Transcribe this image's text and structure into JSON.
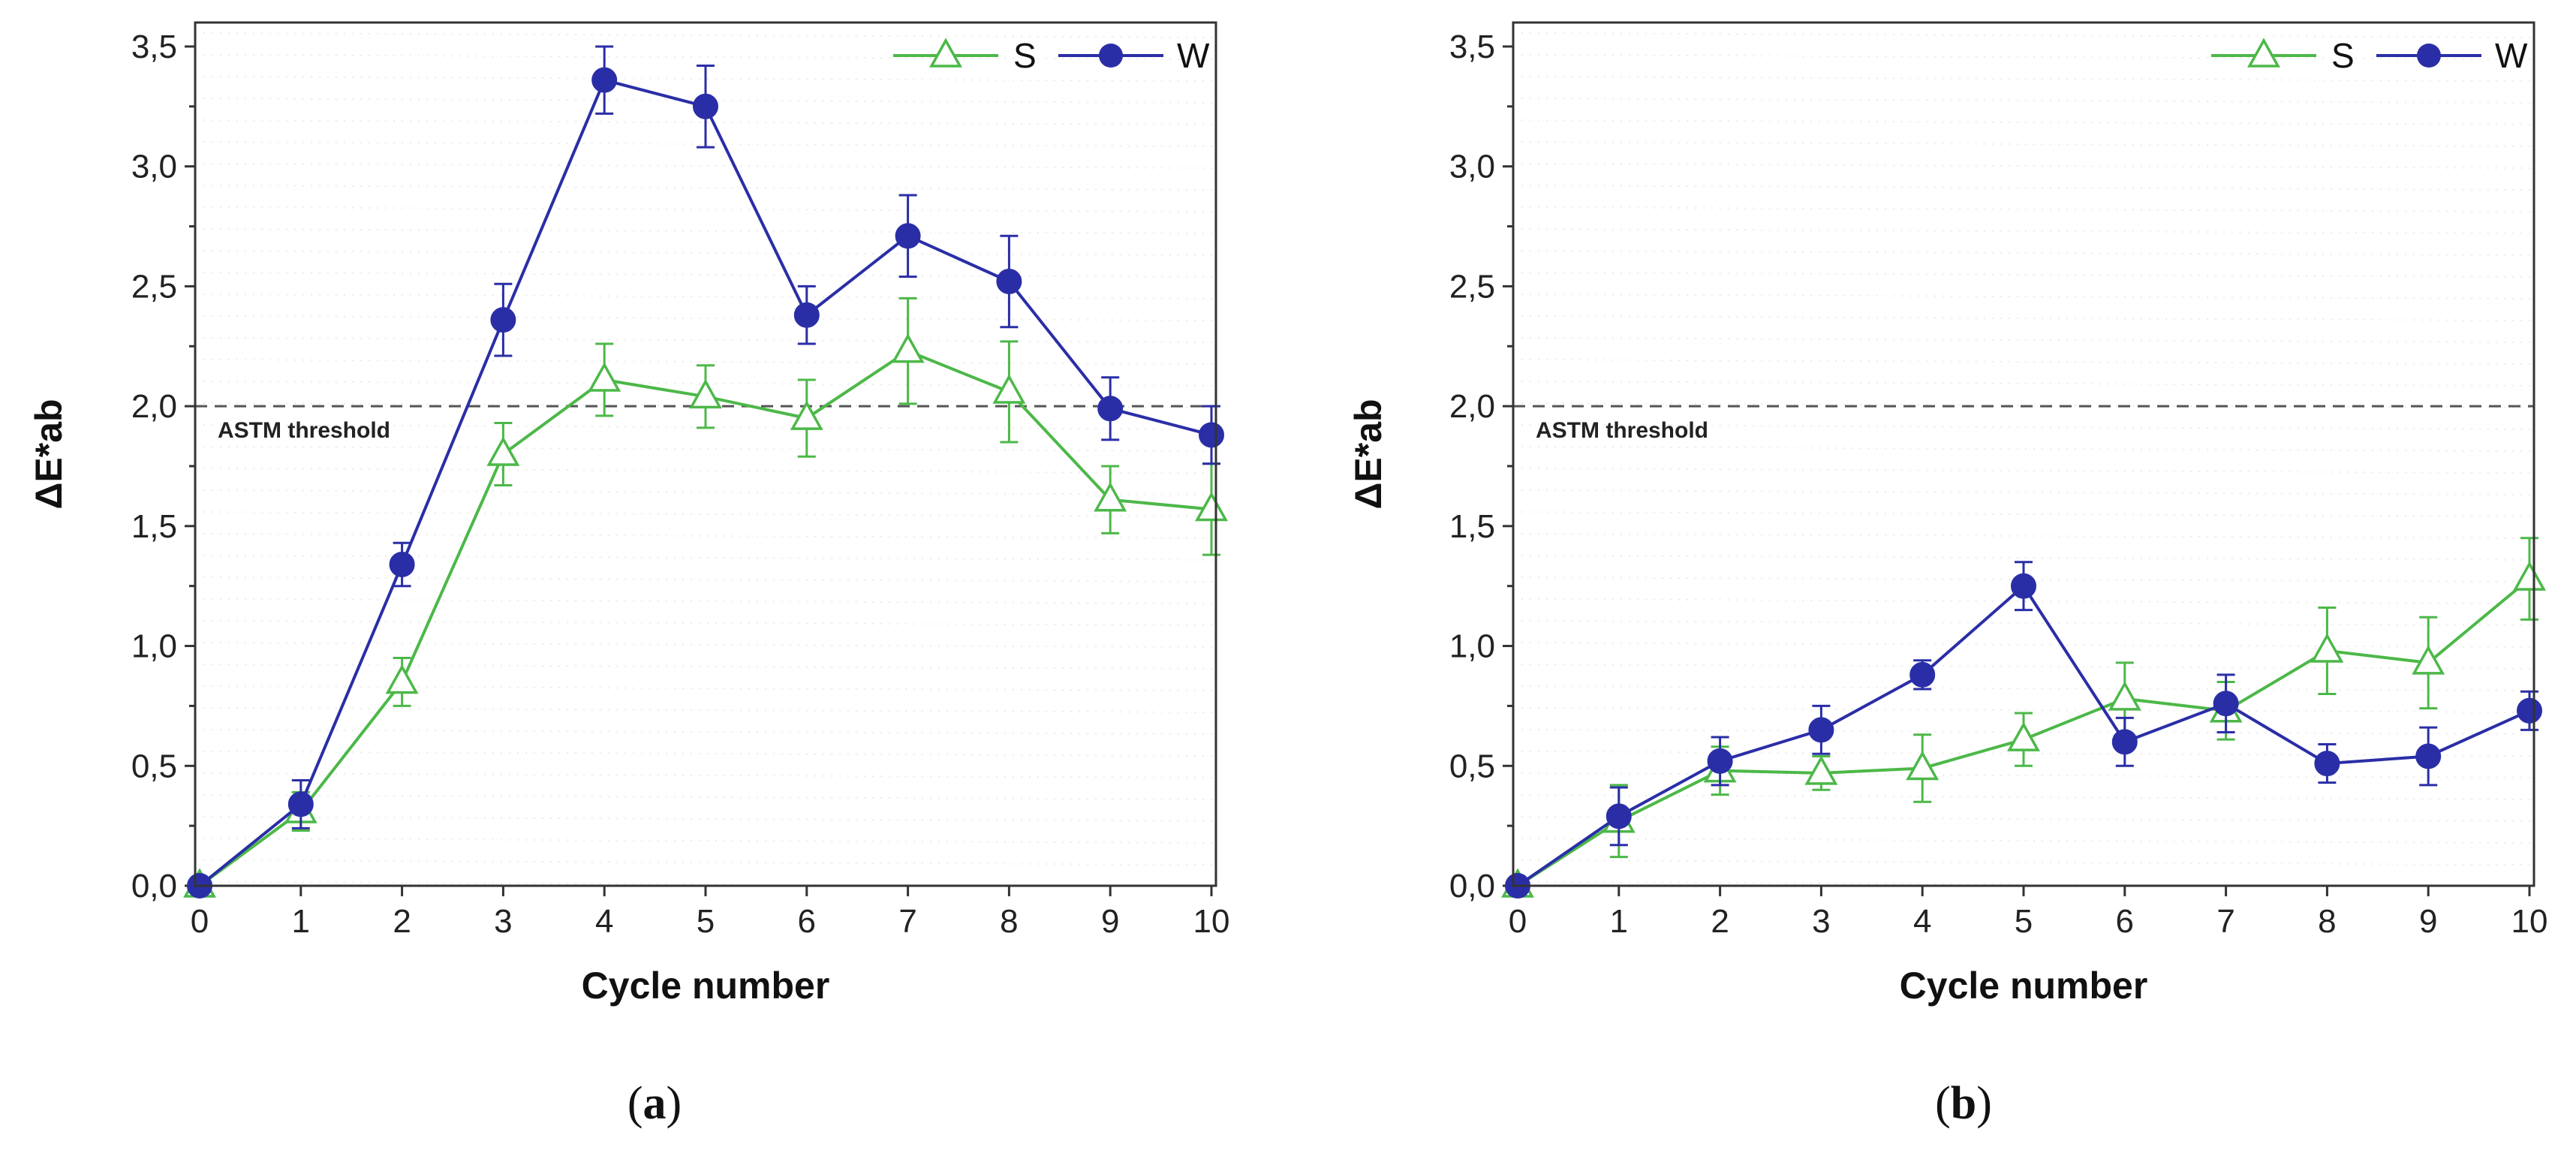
{
  "chart_data": [
    {
      "type": "line",
      "panel_label": "a",
      "xlabel": "Cycle number",
      "ylabel": "ΔE*ab",
      "x": [
        0,
        1,
        2,
        3,
        4,
        5,
        6,
        7,
        8,
        9,
        10
      ],
      "xticks": [
        "0",
        "1",
        "2",
        "3",
        "4",
        "5",
        "6",
        "7",
        "8",
        "9",
        "10"
      ],
      "xlim": [
        0,
        10
      ],
      "yticks": [
        "0,0",
        "0,5",
        "1,0",
        "1,5",
        "2,0",
        "2,5",
        "3,0",
        "3,5"
      ],
      "ylim": [
        0,
        3.6
      ],
      "threshold": {
        "value": 2.0,
        "label": "ASTM threshold"
      },
      "legend_position": "top-right",
      "series": [
        {
          "name": "S",
          "marker": "open-triangle",
          "color": "#4cb848",
          "values": [
            0.0,
            0.31,
            0.85,
            1.8,
            2.11,
            2.04,
            1.95,
            2.23,
            2.06,
            1.61,
            1.57
          ],
          "errors": [
            0.0,
            0.08,
            0.1,
            0.13,
            0.15,
            0.13,
            0.16,
            0.22,
            0.21,
            0.14,
            0.19
          ]
        },
        {
          "name": "W",
          "marker": "filled-circle",
          "color": "#2a2ea6",
          "values": [
            0.0,
            0.34,
            1.34,
            2.36,
            3.36,
            3.25,
            2.38,
            2.71,
            2.52,
            1.99,
            1.88
          ],
          "errors": [
            0.0,
            0.1,
            0.09,
            0.15,
            0.14,
            0.17,
            0.12,
            0.17,
            0.19,
            0.13,
            0.12
          ]
        }
      ]
    },
    {
      "type": "line",
      "panel_label": "b",
      "xlabel": "Cycle number",
      "ylabel": "ΔE*ab",
      "x": [
        0,
        1,
        2,
        3,
        4,
        5,
        6,
        7,
        8,
        9,
        10
      ],
      "xticks": [
        "0",
        "1",
        "2",
        "3",
        "4",
        "5",
        "6",
        "7",
        "8",
        "9",
        "10"
      ],
      "xlim": [
        0,
        10
      ],
      "yticks": [
        "0,0",
        "0,5",
        "1,0",
        "1,5",
        "2,0",
        "2,5",
        "3,0",
        "3,5"
      ],
      "ylim": [
        0,
        3.6
      ],
      "threshold": {
        "value": 2.0,
        "label": "ASTM threshold"
      },
      "legend_position": "top-right",
      "series": [
        {
          "name": "S",
          "marker": "open-triangle",
          "color": "#4cb848",
          "values": [
            0.0,
            0.27,
            0.48,
            0.47,
            0.49,
            0.61,
            0.78,
            0.73,
            0.98,
            0.93,
            1.28
          ],
          "errors": [
            0.0,
            0.15,
            0.1,
            0.07,
            0.14,
            0.11,
            0.15,
            0.12,
            0.18,
            0.19,
            0.17
          ]
        },
        {
          "name": "W",
          "marker": "filled-circle",
          "color": "#2a2ea6",
          "values": [
            0.0,
            0.29,
            0.52,
            0.65,
            0.88,
            1.25,
            0.6,
            0.76,
            0.51,
            0.54,
            0.73
          ],
          "errors": [
            0.0,
            0.12,
            0.1,
            0.1,
            0.06,
            0.1,
            0.1,
            0.12,
            0.08,
            0.12,
            0.08
          ]
        }
      ]
    }
  ]
}
